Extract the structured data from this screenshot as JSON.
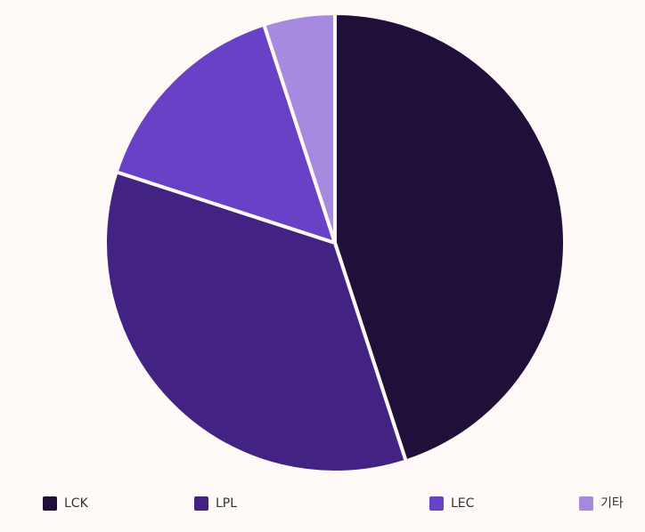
{
  "chart_data": {
    "type": "pie",
    "categories": [
      "LCK",
      "LPL",
      "LEC",
      "기타"
    ],
    "values": [
      45,
      35,
      15,
      5
    ],
    "colors": [
      "#1e1038",
      "#422283",
      "#6941c6",
      "#a58ae0"
    ],
    "legend": "bottom"
  }
}
